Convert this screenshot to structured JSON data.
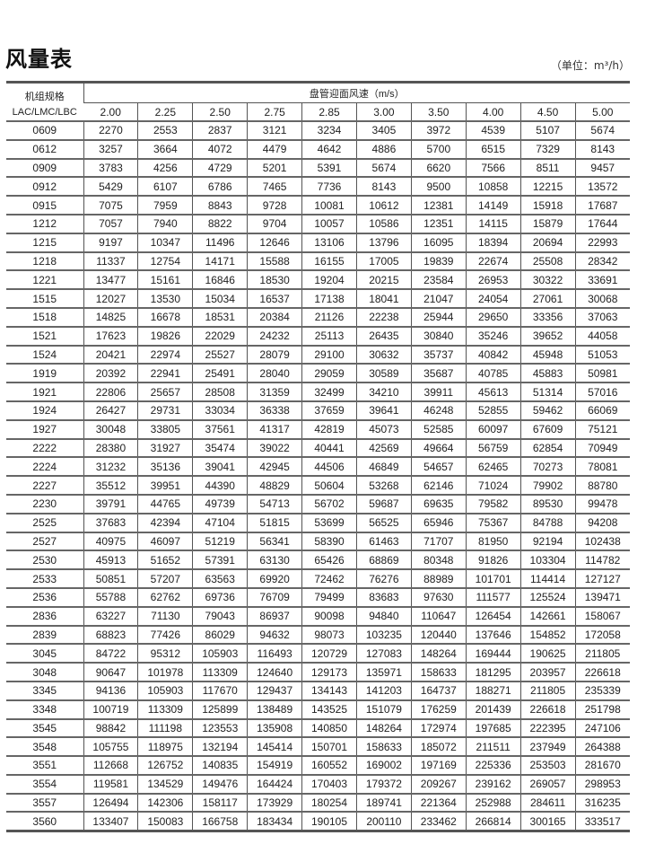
{
  "title": "风量表",
  "unit": "（单位：m³/h）",
  "table": {
    "spec_header_line1": "机组规格",
    "spec_header_line2": "LAC/LMC/LBC",
    "velocity_header": "盘管迎面风速（m/s）",
    "velocities": [
      "2.00",
      "2.25",
      "2.50",
      "2.75",
      "2.85",
      "3.00",
      "3.50",
      "4.00",
      "4.50",
      "5.00"
    ],
    "rows": [
      {
        "model": "0609",
        "values": [
          "2270",
          "2553",
          "2837",
          "3121",
          "3234",
          "3405",
          "3972",
          "4539",
          "5107",
          "5674"
        ]
      },
      {
        "model": "0612",
        "values": [
          "3257",
          "3664",
          "4072",
          "4479",
          "4642",
          "4886",
          "5700",
          "6515",
          "7329",
          "8143"
        ]
      },
      {
        "model": "0909",
        "values": [
          "3783",
          "4256",
          "4729",
          "5201",
          "5391",
          "5674",
          "6620",
          "7566",
          "8511",
          "9457"
        ]
      },
      {
        "model": "0912",
        "values": [
          "5429",
          "6107",
          "6786",
          "7465",
          "7736",
          "8143",
          "9500",
          "10858",
          "12215",
          "13572"
        ]
      },
      {
        "model": "0915",
        "values": [
          "7075",
          "7959",
          "8843",
          "9728",
          "10081",
          "10612",
          "12381",
          "14149",
          "15918",
          "17687"
        ]
      },
      {
        "model": "1212",
        "values": [
          "7057",
          "7940",
          "8822",
          "9704",
          "10057",
          "10586",
          "12351",
          "14115",
          "15879",
          "17644"
        ]
      },
      {
        "model": "1215",
        "values": [
          "9197",
          "10347",
          "11496",
          "12646",
          "13106",
          "13796",
          "16095",
          "18394",
          "20694",
          "22993"
        ]
      },
      {
        "model": "1218",
        "values": [
          "11337",
          "12754",
          "14171",
          "15588",
          "16155",
          "17005",
          "19839",
          "22674",
          "25508",
          "28342"
        ]
      },
      {
        "model": "1221",
        "values": [
          "13477",
          "15161",
          "16846",
          "18530",
          "19204",
          "20215",
          "23584",
          "26953",
          "30322",
          "33691"
        ]
      },
      {
        "model": "1515",
        "values": [
          "12027",
          "13530",
          "15034",
          "16537",
          "17138",
          "18041",
          "21047",
          "24054",
          "27061",
          "30068"
        ]
      },
      {
        "model": "1518",
        "values": [
          "14825",
          "16678",
          "18531",
          "20384",
          "21126",
          "22238",
          "25944",
          "29650",
          "33356",
          "37063"
        ]
      },
      {
        "model": "1521",
        "values": [
          "17623",
          "19826",
          "22029",
          "24232",
          "25113",
          "26435",
          "30840",
          "35246",
          "39652",
          "44058"
        ]
      },
      {
        "model": "1524",
        "values": [
          "20421",
          "22974",
          "25527",
          "28079",
          "29100",
          "30632",
          "35737",
          "40842",
          "45948",
          "51053"
        ]
      },
      {
        "model": "1919",
        "values": [
          "20392",
          "22941",
          "25491",
          "28040",
          "29059",
          "30589",
          "35687",
          "40785",
          "45883",
          "50981"
        ]
      },
      {
        "model": "1921",
        "values": [
          "22806",
          "25657",
          "28508",
          "31359",
          "32499",
          "34210",
          "39911",
          "45613",
          "51314",
          "57016"
        ]
      },
      {
        "model": "1924",
        "values": [
          "26427",
          "29731",
          "33034",
          "36338",
          "37659",
          "39641",
          "46248",
          "52855",
          "59462",
          "66069"
        ]
      },
      {
        "model": "1927",
        "values": [
          "30048",
          "33805",
          "37561",
          "41317",
          "42819",
          "45073",
          "52585",
          "60097",
          "67609",
          "75121"
        ]
      },
      {
        "model": "2222",
        "values": [
          "28380",
          "31927",
          "35474",
          "39022",
          "40441",
          "42569",
          "49664",
          "56759",
          "62854",
          "70949"
        ]
      },
      {
        "model": "2224",
        "values": [
          "31232",
          "35136",
          "39041",
          "42945",
          "44506",
          "46849",
          "54657",
          "62465",
          "70273",
          "78081"
        ]
      },
      {
        "model": "2227",
        "values": [
          "35512",
          "39951",
          "44390",
          "48829",
          "50604",
          "53268",
          "62146",
          "71024",
          "79902",
          "88780"
        ]
      },
      {
        "model": "2230",
        "values": [
          "39791",
          "44765",
          "49739",
          "54713",
          "56702",
          "59687",
          "69635",
          "79582",
          "89530",
          "99478"
        ]
      },
      {
        "model": "2525",
        "values": [
          "37683",
          "42394",
          "47104",
          "51815",
          "53699",
          "56525",
          "65946",
          "75367",
          "84788",
          "94208"
        ]
      },
      {
        "model": "2527",
        "values": [
          "40975",
          "46097",
          "51219",
          "56341",
          "58390",
          "61463",
          "71707",
          "81950",
          "92194",
          "102438"
        ]
      },
      {
        "model": "2530",
        "values": [
          "45913",
          "51652",
          "57391",
          "63130",
          "65426",
          "68869",
          "80348",
          "91826",
          "103304",
          "114782"
        ]
      },
      {
        "model": "2533",
        "values": [
          "50851",
          "57207",
          "63563",
          "69920",
          "72462",
          "76276",
          "88989",
          "101701",
          "114414",
          "127127"
        ]
      },
      {
        "model": "2536",
        "values": [
          "55788",
          "62762",
          "69736",
          "76709",
          "79499",
          "83683",
          "97630",
          "111577",
          "125524",
          "139471"
        ]
      },
      {
        "model": "2836",
        "values": [
          "63227",
          "71130",
          "79043",
          "86937",
          "90098",
          "94840",
          "110647",
          "126454",
          "142661",
          "158067"
        ]
      },
      {
        "model": "2839",
        "values": [
          "68823",
          "77426",
          "86029",
          "94632",
          "98073",
          "103235",
          "120440",
          "137646",
          "154852",
          "172058"
        ]
      },
      {
        "model": "3045",
        "values": [
          "84722",
          "95312",
          "105903",
          "116493",
          "120729",
          "127083",
          "148264",
          "169444",
          "190625",
          "211805"
        ]
      },
      {
        "model": "3048",
        "values": [
          "90647",
          "101978",
          "113309",
          "124640",
          "129173",
          "135971",
          "158633",
          "181295",
          "203957",
          "226618"
        ]
      },
      {
        "model": "3345",
        "values": [
          "94136",
          "105903",
          "117670",
          "129437",
          "134143",
          "141203",
          "164737",
          "188271",
          "211805",
          "235339"
        ]
      },
      {
        "model": "3348",
        "values": [
          "100719",
          "113309",
          "125899",
          "138489",
          "143525",
          "151079",
          "176259",
          "201439",
          "226618",
          "251798"
        ]
      },
      {
        "model": "3545",
        "values": [
          "98842",
          "111198",
          "123553",
          "135908",
          "140850",
          "148264",
          "172974",
          "197685",
          "222395",
          "247106"
        ]
      },
      {
        "model": "3548",
        "values": [
          "105755",
          "118975",
          "132194",
          "145414",
          "150701",
          "158633",
          "185072",
          "211511",
          "237949",
          "264388"
        ]
      },
      {
        "model": "3551",
        "values": [
          "112668",
          "126752",
          "140835",
          "154919",
          "160552",
          "169002",
          "197169",
          "225336",
          "253503",
          "281670"
        ]
      },
      {
        "model": "3554",
        "values": [
          "119581",
          "134529",
          "149476",
          "164424",
          "170403",
          "179372",
          "209267",
          "239162",
          "269057",
          "298953"
        ]
      },
      {
        "model": "3557",
        "values": [
          "126494",
          "142306",
          "158117",
          "173929",
          "180254",
          "189741",
          "221364",
          "252988",
          "284611",
          "316235"
        ]
      },
      {
        "model": "3560",
        "values": [
          "133407",
          "150083",
          "166758",
          "183434",
          "190105",
          "200110",
          "233462",
          "266814",
          "300165",
          "333517"
        ]
      }
    ]
  }
}
